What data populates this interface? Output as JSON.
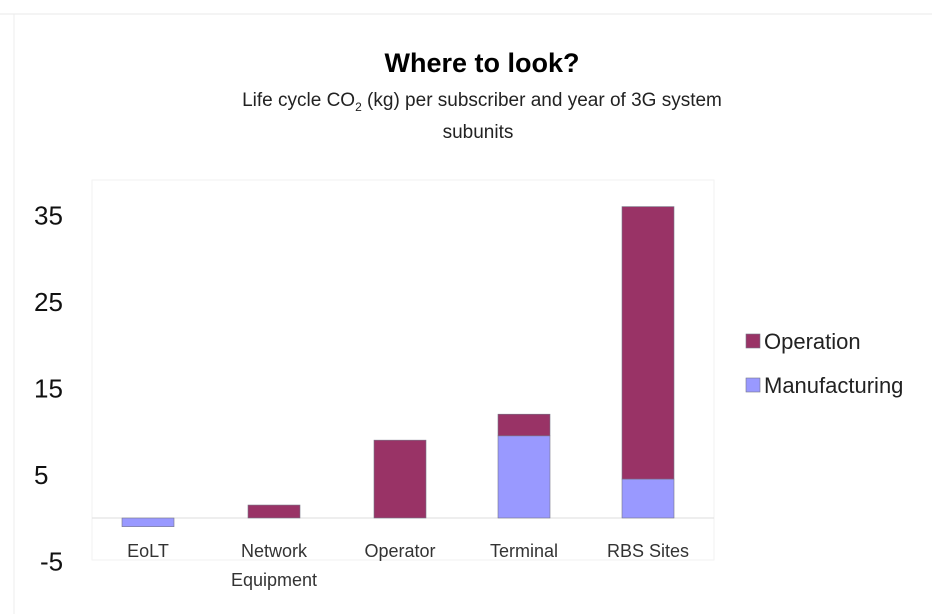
{
  "chart_data": {
    "type": "bar",
    "stacked": true,
    "title": "Where to look?",
    "subtitle_line1": "Life cycle CO",
    "subtitle_sub": "2",
    "subtitle_line1_rest": " (kg) per subscriber and year of 3G system",
    "subtitle_line2": "subunits",
    "categories": [
      {
        "line1": "EoLT",
        "line2": ""
      },
      {
        "line1": "Network",
        "line2": "Equipment"
      },
      {
        "line1": "Operator",
        "line2": ""
      },
      {
        "line1": "Terminal",
        "line2": ""
      },
      {
        "line1": "RBS Sites",
        "line2": ""
      }
    ],
    "series": [
      {
        "name": "Manufacturing",
        "color": "#9999ff",
        "values": [
          -1,
          0,
          0,
          9.5,
          4.5
        ]
      },
      {
        "name": "Operation",
        "color": "#993366",
        "values": [
          0,
          1.5,
          9,
          2.5,
          31.5
        ]
      }
    ],
    "yticks": [
      "35",
      "25",
      "15",
      "5",
      "-5"
    ],
    "ylim": [
      -5,
      40
    ],
    "legend_position": "right",
    "grid": false
  }
}
